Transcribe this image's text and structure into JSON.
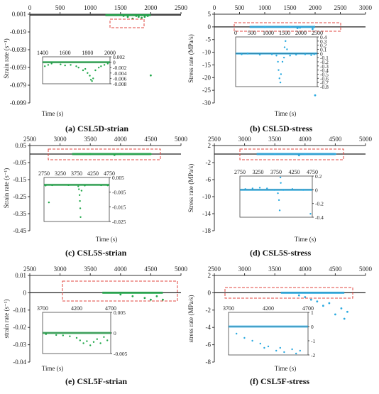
{
  "chart_data": [
    {
      "type": "scatter",
      "caption": "(a) CSL5D-strian",
      "xlabel": "Time (s)",
      "ylabel": "Strain rate (s⁻¹)",
      "xlim": [
        0,
        2500
      ],
      "ylim": [
        -0.099,
        0.001
      ],
      "xticks": [
        "0",
        "500",
        "1000",
        "1500",
        "2000",
        "2500"
      ],
      "yticks": [
        "0.001",
        "-0.019",
        "-0.039",
        "-0.059",
        "-0.079",
        "-0.099"
      ],
      "series_color": "#21a84a",
      "points": [
        [
          1550,
          -0.001
        ],
        [
          1620,
          -0.002
        ],
        [
          1700,
          -0.004
        ],
        [
          1760,
          -0.001
        ],
        [
          1800,
          -0.002
        ],
        [
          1850,
          -0.003
        ],
        [
          1900,
          -0.002
        ],
        [
          1950,
          -0.001
        ],
        [
          2000,
          -0.068
        ]
      ],
      "inset": {
        "xlim": [
          1400,
          2000
        ],
        "ylim": [
          -0.008,
          0.002
        ],
        "xticks": [
          "1400",
          "1600",
          "1800",
          "2000"
        ],
        "yticks": [
          "0.002",
          "0",
          "-0.002",
          "-0.004",
          "-0.006",
          "-0.008"
        ],
        "points": [
          [
            1420,
            -0.0015
          ],
          [
            1450,
            -0.001
          ],
          [
            1480,
            -0.0005
          ],
          [
            1560,
            -0.0008
          ],
          [
            1600,
            -0.0012
          ],
          [
            1650,
            -0.001
          ],
          [
            1700,
            -0.0015
          ],
          [
            1720,
            -0.002
          ],
          [
            1760,
            -0.003
          ],
          [
            1780,
            -0.0025
          ],
          [
            1800,
            -0.004
          ],
          [
            1820,
            -0.005
          ],
          [
            1830,
            -0.0065
          ],
          [
            1840,
            -0.007
          ],
          [
            1850,
            -0.006
          ],
          [
            1870,
            -0.003
          ],
          [
            1900,
            -0.002
          ],
          [
            1920,
            -0.0015
          ],
          [
            1950,
            -0.001
          ],
          [
            1980,
            -0.0005
          ]
        ]
      }
    },
    {
      "type": "scatter",
      "caption": "(b) CSL5D-stress",
      "xlabel": "Time (s)",
      "ylabel": "Stress rate (MPa/s)",
      "xlim": [
        0,
        3000
      ],
      "ylim": [
        -30,
        5
      ],
      "xticks": [
        "0",
        "500",
        "1000",
        "1500",
        "2000",
        "2500",
        "3000"
      ],
      "yticks": [
        "5",
        "0",
        "-5",
        "-10",
        "-15",
        "-20",
        "-25",
        "-30"
      ],
      "series_color": "#29a9e0",
      "points": [
        [
          1000,
          0
        ],
        [
          1500,
          0
        ],
        [
          1650,
          -0.5
        ],
        [
          1700,
          -0.3
        ],
        [
          1950,
          -0.8
        ],
        [
          2000,
          -27
        ]
      ],
      "inset": {
        "xlim": [
          0,
          2700
        ],
        "ylim": [
          -0.8,
          0.4
        ],
        "xticks": [
          "0",
          "500",
          "1000",
          "1500",
          "2000",
          "2500"
        ],
        "yticks": [
          "0.4",
          "0.3",
          "0.2",
          "0.1",
          "0",
          "-0.1",
          "-0.2",
          "-0.3",
          "-0.4",
          "-0.5",
          "-0.6",
          "-0.7",
          "-0.8"
        ],
        "points": [
          [
            200,
            -0.02
          ],
          [
            400,
            0.0
          ],
          [
            800,
            -0.03
          ],
          [
            1200,
            -0.02
          ],
          [
            1350,
            -0.05
          ],
          [
            1400,
            -0.2
          ],
          [
            1420,
            -0.4
          ],
          [
            1450,
            -0.6
          ],
          [
            1480,
            -0.7
          ],
          [
            1500,
            -0.5
          ],
          [
            1550,
            -0.2
          ],
          [
            1600,
            -0.1
          ],
          [
            1620,
            0.15
          ],
          [
            1650,
            0.3
          ],
          [
            1700,
            0.1
          ],
          [
            1800,
            -0.05
          ],
          [
            2000,
            -0.03
          ],
          [
            2300,
            -0.02
          ],
          [
            2500,
            -0.04
          ],
          [
            2600,
            -0.02
          ]
        ]
      }
    },
    {
      "type": "scatter",
      "caption": "(c) CSL5S-strian",
      "xlabel": "Time (s)",
      "ylabel": "Strain rate (s⁻¹)",
      "xlim": [
        2500,
        5000
      ],
      "ylim": [
        -0.45,
        0.05
      ],
      "xticks": [
        "2500",
        "3000",
        "3500",
        "4000",
        "4500",
        "5000"
      ],
      "yticks": [
        "0.05",
        "-0.05",
        "-0.15",
        "-0.25",
        "-0.35",
        "-0.45"
      ],
      "series_color": "#21a84a",
      "points": [
        [
          3500,
          0
        ],
        [
          3900,
          -0.005
        ],
        [
          4000,
          0
        ],
        [
          4500,
          0
        ]
      ],
      "inset": {
        "xlim": [
          2750,
          4750
        ],
        "ylim": [
          -0.025,
          0.005
        ],
        "xticks": [
          "2750",
          "3250",
          "3750",
          "4250",
          "4750"
        ],
        "yticks": [
          "0.005",
          "-0.005",
          "-0.015",
          "-0.025"
        ],
        "points": [
          [
            2800,
            -0.0005
          ],
          [
            2900,
            -0.012
          ],
          [
            3000,
            -0.0003
          ],
          [
            3500,
            -0.0002
          ],
          [
            3800,
            -0.001
          ],
          [
            3820,
            -0.003
          ],
          [
            3840,
            -0.007
          ],
          [
            3850,
            -0.011
          ],
          [
            3860,
            -0.016
          ],
          [
            3870,
            -0.022
          ],
          [
            3900,
            -0.004
          ],
          [
            4000,
            -0.0005
          ],
          [
            4500,
            -0.0003
          ],
          [
            4700,
            -0.0004
          ]
        ]
      }
    },
    {
      "type": "scatter",
      "caption": "(d) CSL5S-stress",
      "xlabel": "Time (s)",
      "ylabel": "Stress rate (MPa/s)",
      "xlim": [
        2500,
        5000
      ],
      "ylim": [
        -18,
        2
      ],
      "xticks": [
        "2500",
        "3000",
        "3500",
        "4000",
        "4500",
        "5000"
      ],
      "yticks": [
        "2",
        "-2",
        "-6",
        "-10",
        "-14",
        "-18"
      ],
      "series_color": "#29a9e0",
      "points": [
        [
          3500,
          0
        ],
        [
          3900,
          -0.3
        ],
        [
          4000,
          0
        ],
        [
          4500,
          0
        ]
      ],
      "inset": {
        "xlim": [
          2750,
          4750
        ],
        "ylim": [
          -0.4,
          0.2
        ],
        "xticks": [
          "2750",
          "3250",
          "3750",
          "4250",
          "4750"
        ],
        "yticks": [
          "0.2",
          "0",
          "-0.2",
          "-0.4"
        ],
        "points": [
          [
            2900,
            0.01
          ],
          [
            3100,
            0.02
          ],
          [
            3300,
            0.03
          ],
          [
            3500,
            0.02
          ],
          [
            3700,
            0.0
          ],
          [
            3800,
            -0.05
          ],
          [
            3830,
            -0.15
          ],
          [
            3850,
            -0.3
          ],
          [
            3870,
            0.18
          ],
          [
            3880,
            0.1
          ],
          [
            3950,
            0.0
          ],
          [
            4200,
            0.01
          ],
          [
            4500,
            0.0
          ],
          [
            4700,
            -0.35
          ]
        ]
      }
    },
    {
      "type": "scatter",
      "caption": "(e) CSL5F-strian",
      "xlabel": "Time (s)",
      "ylabel": "strain rate (s⁻¹)",
      "xlim": [
        2500,
        5000
      ],
      "ylim": [
        -0.04,
        0.01
      ],
      "xticks": [
        "2500",
        "3000",
        "3500",
        "4000",
        "4500",
        "5000"
      ],
      "yticks": [
        "0.01",
        "0",
        "-0.01",
        "-0.02",
        "-0.03",
        "-0.04"
      ],
      "series_color": "#21a84a",
      "points": [
        [
          4000,
          -0.001
        ],
        [
          4200,
          -0.002
        ],
        [
          4400,
          -0.003
        ],
        [
          4500,
          -0.004
        ],
        [
          4600,
          -0.002
        ],
        [
          4700,
          -0.004
        ]
      ],
      "inset": {
        "xlim": [
          3700,
          4700
        ],
        "ylim": [
          -0.005,
          0.005
        ],
        "xticks": [
          "3700",
          "4200",
          "4700"
        ],
        "yticks": [
          "0.005",
          "0",
          "-0.005"
        ],
        "points": [
          [
            3750,
            -0.0003
          ],
          [
            3900,
            -0.0005
          ],
          [
            4000,
            -0.0006
          ],
          [
            4100,
            -0.0008
          ],
          [
            4200,
            -0.0012
          ],
          [
            4250,
            -0.0018
          ],
          [
            4300,
            -0.0025
          ],
          [
            4350,
            -0.002
          ],
          [
            4400,
            -0.003
          ],
          [
            4450,
            -0.0022
          ],
          [
            4500,
            -0.0015
          ],
          [
            4550,
            -0.0025
          ],
          [
            4600,
            -0.001
          ],
          [
            4650,
            -0.0018
          ]
        ]
      }
    },
    {
      "type": "scatter",
      "caption": "(f) CSL5F-stress",
      "xlabel": "Time (s)",
      "ylabel": "stress rate (MPa/s)",
      "xlim": [
        2500,
        5000
      ],
      "ylim": [
        -8,
        2
      ],
      "xticks": [
        "2500",
        "3000",
        "3500",
        "4000",
        "4500",
        "5000"
      ],
      "yticks": [
        "2",
        "0",
        "-2",
        "-4",
        "-6",
        "-8"
      ],
      "series_color": "#29a9e0",
      "points": [
        [
          3900,
          -0.3
        ],
        [
          4000,
          -0.5
        ],
        [
          4100,
          -0.8
        ],
        [
          4200,
          -1.0
        ],
        [
          4300,
          -1.5
        ],
        [
          4400,
          -1.2
        ],
        [
          4500,
          -2.5
        ],
        [
          4600,
          -1.8
        ],
        [
          4700,
          -2.2
        ],
        [
          4650,
          -3.0
        ]
      ],
      "inset": {
        "xlim": [
          3700,
          4700
        ],
        "ylim": [
          -2,
          1
        ],
        "xticks": [
          "3700",
          "4200",
          "4700"
        ],
        "yticks": [
          "1",
          "0",
          "-1",
          "-2"
        ],
        "points": [
          [
            3800,
            -0.5
          ],
          [
            3900,
            -0.8
          ],
          [
            4000,
            -1.0
          ],
          [
            4100,
            -1.2
          ],
          [
            4150,
            -1.5
          ],
          [
            4200,
            -1.4
          ],
          [
            4300,
            -1.7
          ],
          [
            4350,
            -1.5
          ],
          [
            4400,
            -1.8
          ],
          [
            4500,
            -1.6
          ],
          [
            4550,
            -1.9
          ],
          [
            4600,
            -1.7
          ]
        ]
      }
    }
  ]
}
